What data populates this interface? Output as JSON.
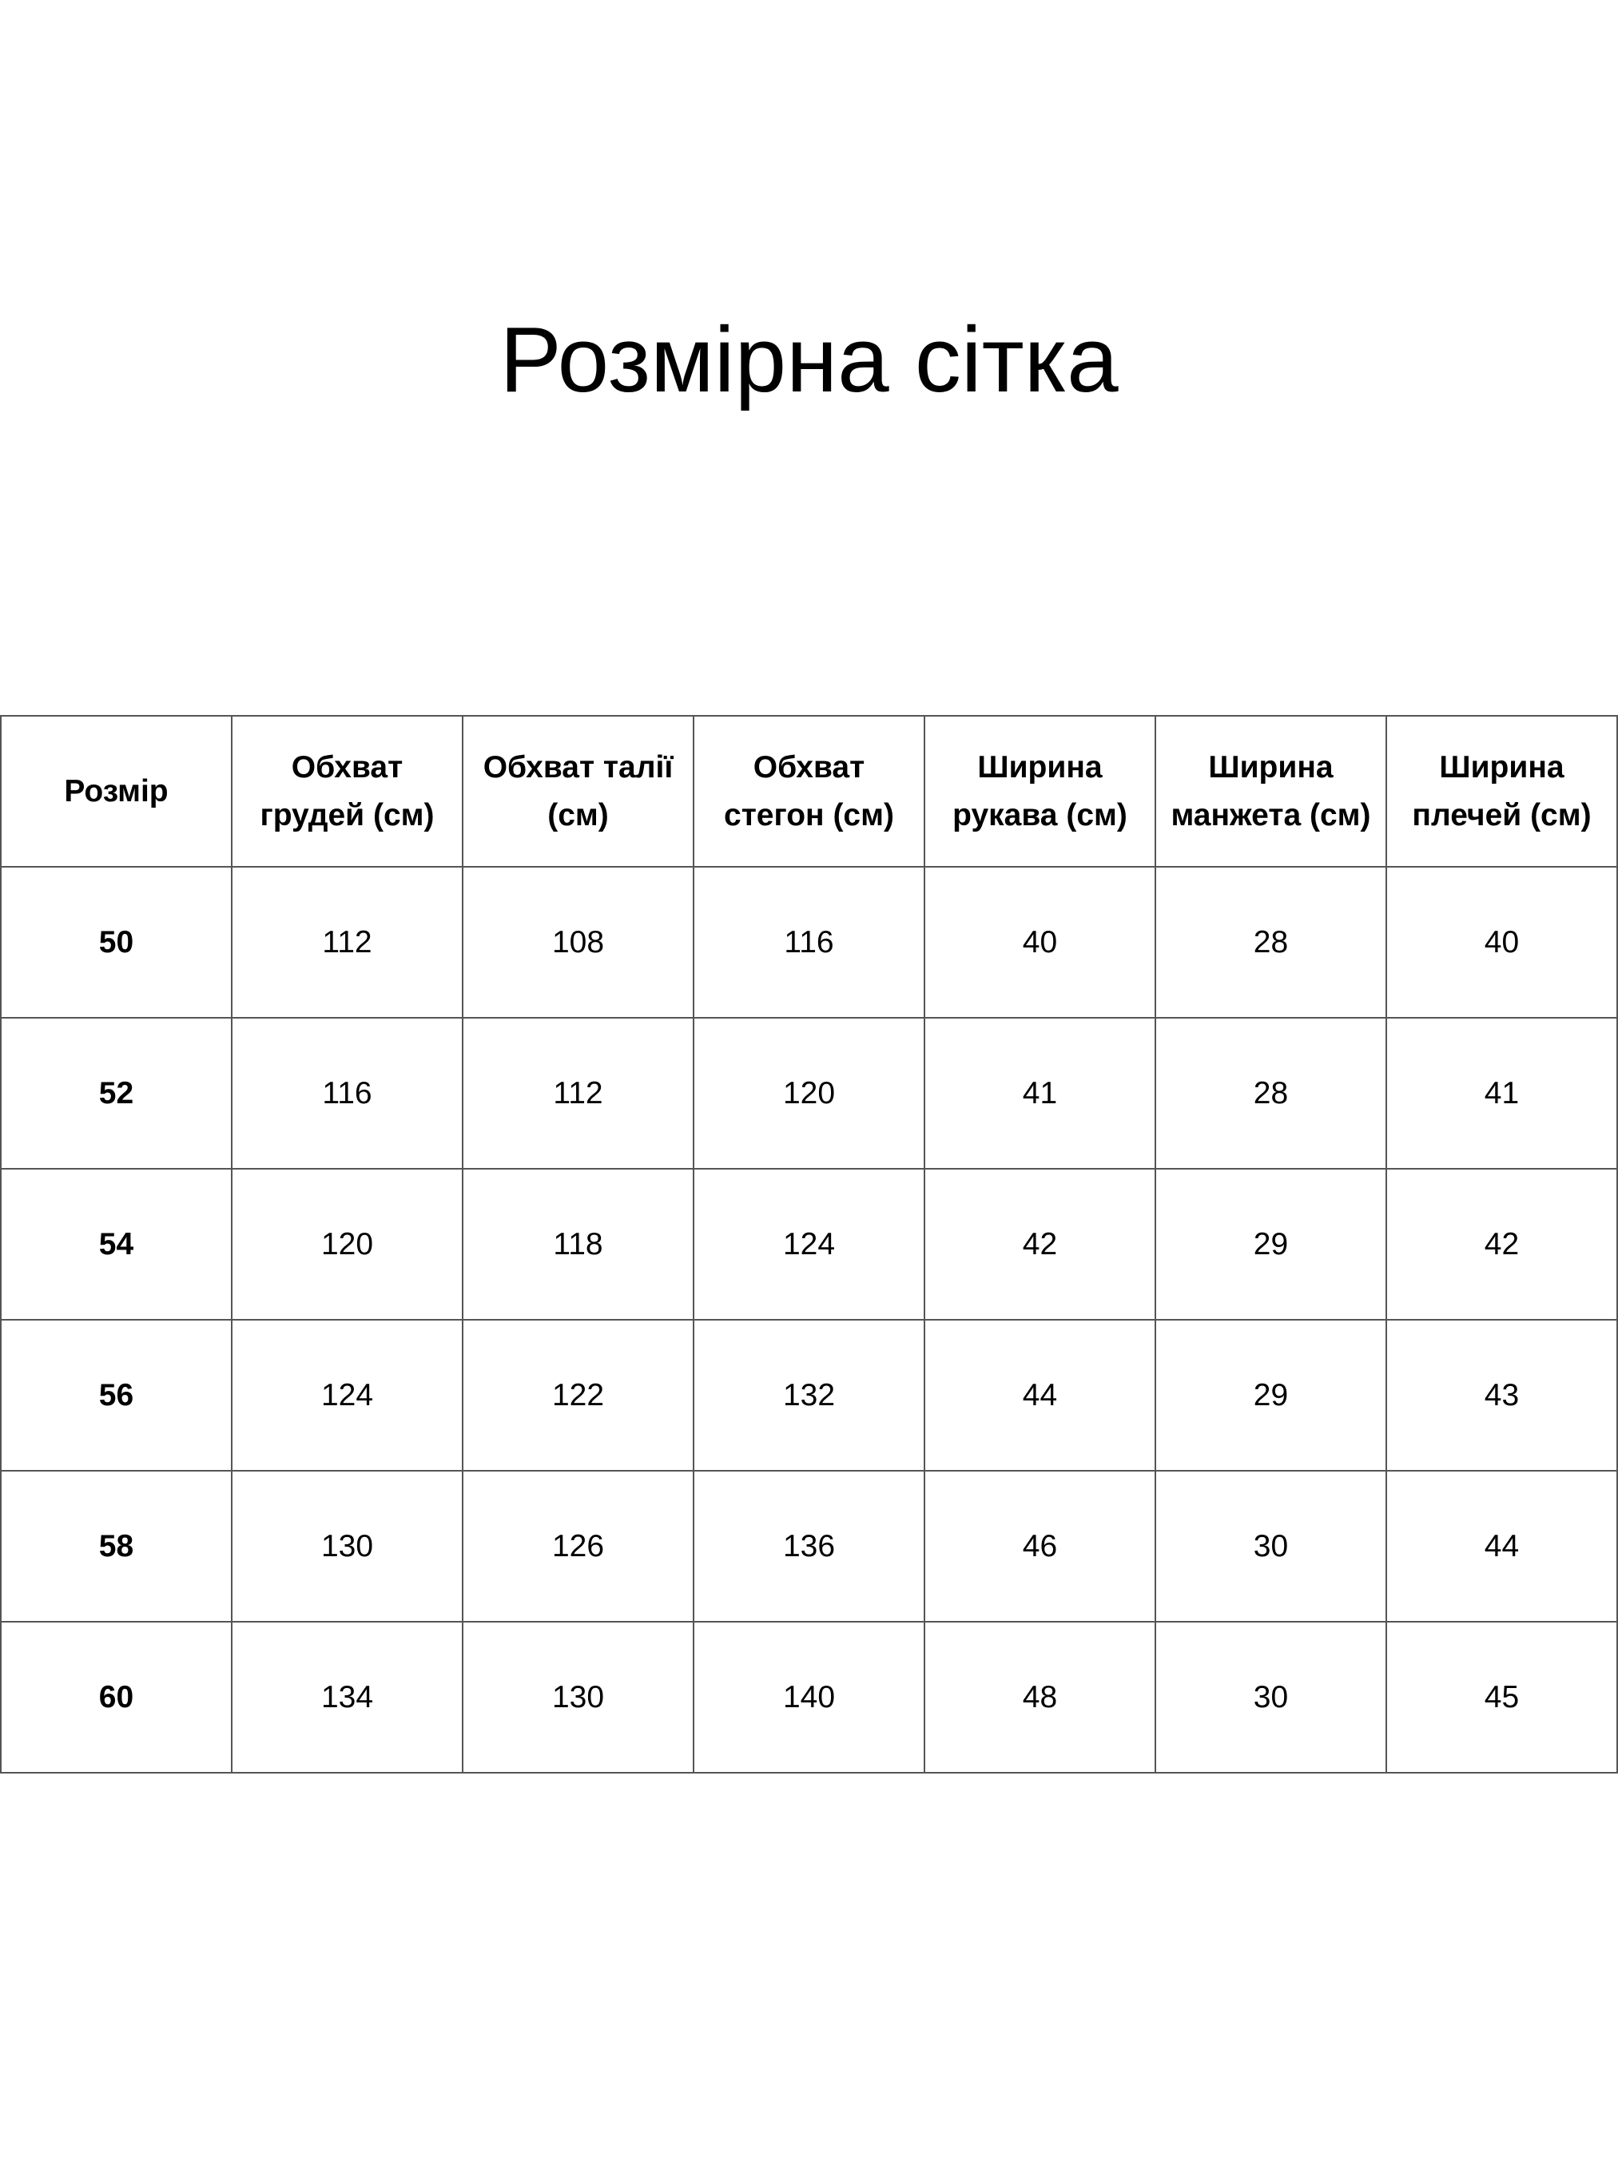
{
  "title": "Розмірна сітка",
  "table": {
    "header": [
      "Розмір",
      "Обхват грудей (см)",
      "Обхват талії (см)",
      "Обхват стегон (см)",
      "Ширина рукава (см)",
      "Ширина манжета (см)",
      "Ширина плечей (см)"
    ],
    "rows": [
      [
        50,
        112,
        108,
        116,
        40,
        28,
        40
      ],
      [
        52,
        116,
        112,
        120,
        41,
        28,
        41
      ],
      [
        54,
        120,
        118,
        124,
        42,
        29,
        42
      ],
      [
        56,
        124,
        122,
        132,
        44,
        29,
        43
      ],
      [
        58,
        130,
        126,
        136,
        46,
        30,
        44
      ],
      [
        60,
        134,
        130,
        140,
        48,
        30,
        45
      ]
    ]
  }
}
